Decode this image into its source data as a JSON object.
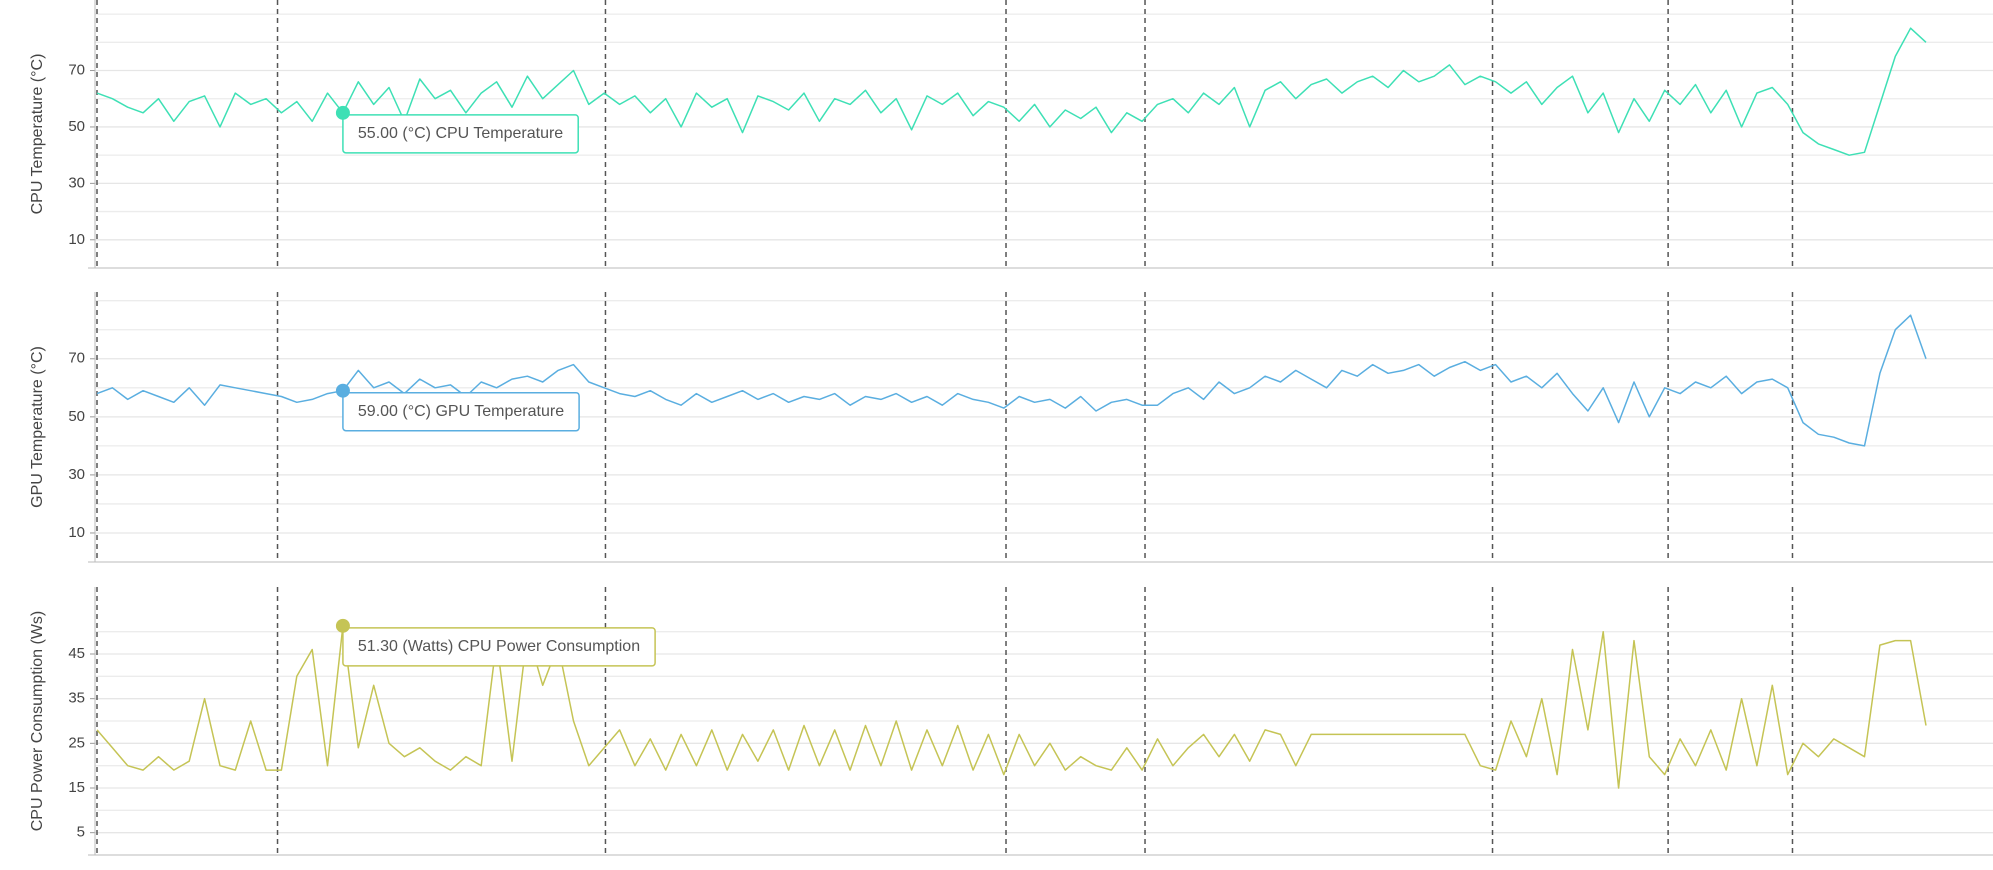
{
  "chart_data": [
    {
      "type": "line",
      "ylabel": "CPU Temperature (°C)",
      "color": "#3ee0b5",
      "tooltip": "55.00 (°C) CPU Temperature",
      "ylim": [
        0,
        95
      ],
      "yticks": [
        10,
        30,
        50,
        70
      ],
      "minor_yticks": [
        20,
        40,
        60,
        80,
        90
      ],
      "values": [
        62,
        60,
        57,
        55,
        60,
        52,
        59,
        61,
        50,
        62,
        58,
        60,
        55,
        59,
        52,
        62,
        55,
        66,
        58,
        64,
        52,
        67,
        60,
        63,
        55,
        62,
        66,
        57,
        68,
        60,
        65,
        70,
        58,
        62,
        58,
        61,
        55,
        60,
        50,
        62,
        57,
        60,
        48,
        61,
        59,
        56,
        62,
        52,
        60,
        58,
        63,
        55,
        60,
        49,
        61,
        58,
        62,
        54,
        59,
        57,
        52,
        58,
        50,
        56,
        53,
        57,
        48,
        55,
        52,
        58,
        60,
        55,
        62,
        58,
        64,
        50,
        63,
        66,
        60,
        65,
        67,
        62,
        66,
        68,
        64,
        70,
        66,
        68,
        72,
        65,
        68,
        66,
        62,
        66,
        58,
        64,
        68,
        55,
        62,
        48,
        60,
        52,
        63,
        58,
        65,
        55,
        63,
        50,
        62,
        64,
        58,
        48,
        44,
        42,
        40,
        41,
        58,
        75,
        85,
        80
      ]
    },
    {
      "type": "line",
      "ylabel": "GPU Temperature (°C)",
      "color": "#5aaee0",
      "tooltip": "59.00 (°C) GPU Temperature",
      "ylim": [
        0,
        93
      ],
      "yticks": [
        10,
        30,
        50,
        70
      ],
      "minor_yticks": [
        20,
        40,
        60,
        80,
        90
      ],
      "values": [
        58,
        60,
        56,
        59,
        57,
        55,
        60,
        54,
        61,
        60,
        59,
        58,
        57,
        55,
        56,
        58,
        59,
        66,
        60,
        62,
        58,
        63,
        60,
        61,
        57,
        62,
        60,
        63,
        64,
        62,
        66,
        68,
        62,
        60,
        58,
        57,
        59,
        56,
        54,
        58,
        55,
        57,
        59,
        56,
        58,
        55,
        57,
        56,
        58,
        54,
        57,
        56,
        58,
        55,
        57,
        54,
        58,
        56,
        55,
        53,
        57,
        55,
        56,
        53,
        57,
        52,
        55,
        56,
        54,
        54,
        58,
        60,
        56,
        62,
        58,
        60,
        64,
        62,
        66,
        63,
        60,
        66,
        64,
        68,
        65,
        66,
        68,
        64,
        67,
        69,
        66,
        68,
        62,
        64,
        60,
        65,
        58,
        52,
        60,
        48,
        62,
        50,
        60,
        58,
        62,
        60,
        64,
        58,
        62,
        63,
        60,
        48,
        44,
        43,
        41,
        40,
        65,
        80,
        85,
        70
      ]
    },
    {
      "type": "line",
      "ylabel": "CPU Power Consumption (Ws)",
      "color": "#c5c455",
      "tooltip": "51.30 (Watts) CPU Power Consumption",
      "ylim": [
        0,
        60
      ],
      "yticks": [
        5,
        15,
        25,
        35,
        45
      ],
      "minor_yticks": [
        10,
        20,
        30,
        40,
        50
      ],
      "values": [
        28,
        24,
        20,
        19,
        22,
        19,
        21,
        35,
        20,
        19,
        30,
        19,
        19,
        40,
        46,
        20,
        51.3,
        24,
        38,
        25,
        22,
        24,
        21,
        19,
        22,
        20,
        48,
        21,
        50,
        38,
        47,
        30,
        20,
        24,
        28,
        20,
        26,
        19,
        27,
        20,
        28,
        19,
        27,
        21,
        28,
        19,
        29,
        20,
        28,
        19,
        29,
        20,
        30,
        19,
        28,
        20,
        29,
        19,
        27,
        18,
        27,
        20,
        25,
        19,
        22,
        20,
        19,
        24,
        19,
        26,
        20,
        24,
        27,
        22,
        27,
        21,
        28,
        27,
        20,
        27,
        27,
        27,
        27,
        27,
        27,
        27,
        27,
        27,
        27,
        27,
        20,
        19,
        30,
        22,
        35,
        18,
        46,
        28,
        50,
        15,
        48,
        22,
        18,
        26,
        20,
        28,
        19,
        35,
        20,
        38,
        18,
        25,
        22,
        26,
        24,
        22,
        47,
        48,
        48,
        29
      ]
    }
  ]
}
